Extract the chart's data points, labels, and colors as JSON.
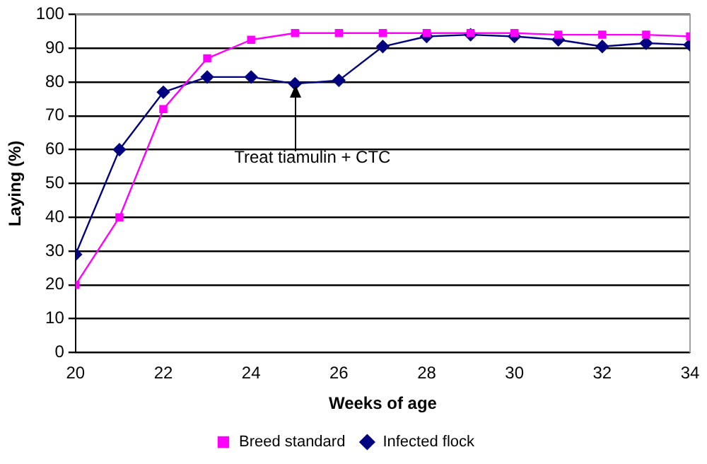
{
  "chart_data": {
    "type": "line",
    "xlabel": "Weeks of age",
    "ylabel": "Laying (%)",
    "x": [
      20,
      21,
      22,
      23,
      24,
      25,
      26,
      27,
      28,
      29,
      30,
      31,
      32,
      33,
      34
    ],
    "series": [
      {
        "name": "Infected flock",
        "color": "#000080",
        "marker": "diamond",
        "values": [
          29,
          60,
          77,
          81.5,
          81.5,
          79.5,
          80.5,
          90.5,
          93.5,
          94,
          93.5,
          92.5,
          90.5,
          91.5,
          91
        ]
      },
      {
        "name": "Breed standard",
        "color": "#ff00ff",
        "marker": "square",
        "values": [
          20,
          40,
          72,
          87,
          92.5,
          94.5,
          94.5,
          94.5,
          94.5,
          94.5,
          94.5,
          94,
          94,
          94,
          93.5
        ]
      }
    ],
    "xlim": [
      20,
      34
    ],
    "xticks": [
      20,
      22,
      24,
      26,
      28,
      30,
      32,
      34
    ],
    "ylim": [
      0,
      100
    ],
    "yticks": [
      0,
      10,
      20,
      30,
      40,
      50,
      60,
      70,
      80,
      90,
      100
    ],
    "grid": "y",
    "legend": "bottom",
    "annotations": [
      {
        "text": "Treat tiamulin + CTC",
        "x": 25,
        "y": 79.5
      }
    ]
  }
}
